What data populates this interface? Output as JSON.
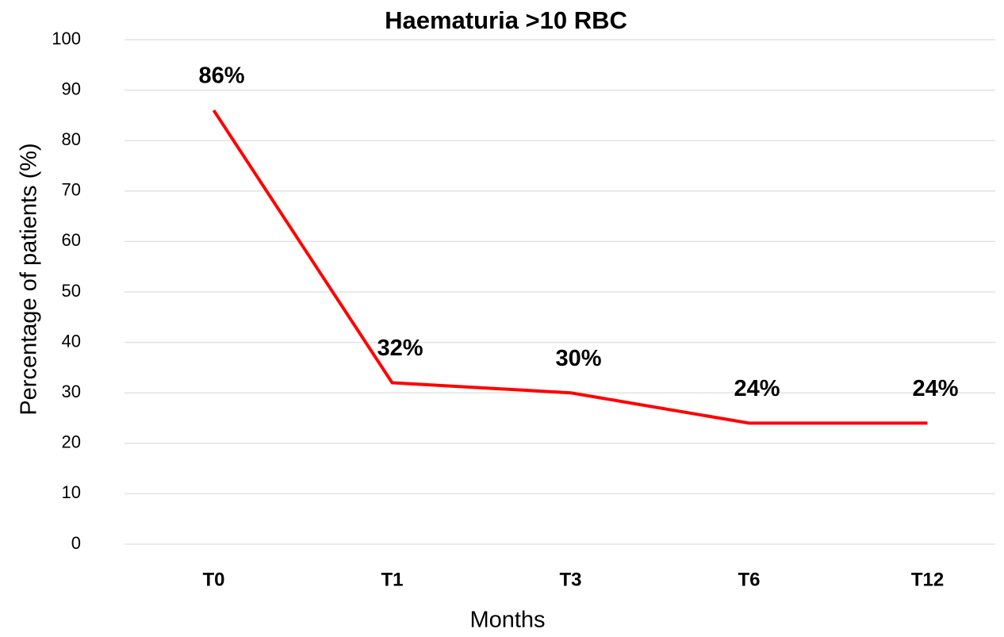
{
  "chart_data": {
    "type": "line",
    "title": "Haematuria >10 RBC",
    "x_label": "Months",
    "y_label": "Percentage of patients (%)",
    "categories": [
      "T0",
      "T1",
      "T3",
      "T6",
      "T12"
    ],
    "values": [
      86,
      32,
      30,
      24,
      24
    ],
    "value_labels": [
      "86%",
      "32%",
      "30%",
      "24%",
      "24%"
    ],
    "color": "#ff0000",
    "ylim": [
      0,
      100
    ],
    "yticks": [
      0,
      10,
      20,
      30,
      40,
      50,
      60,
      70,
      80,
      90,
      100
    ],
    "grid": true
  }
}
